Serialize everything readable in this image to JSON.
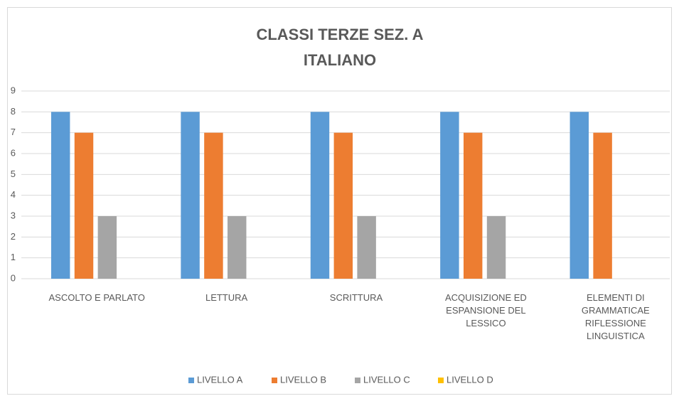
{
  "chart_data": {
    "type": "bar",
    "title": [
      "CLASSI TERZE SEZ. A",
      "ITALIANO"
    ],
    "categories": [
      "ASCOLTO E PARLATO",
      "LETTURA",
      "SCRITTURA",
      "ACQUISIZIONE ED ESPANSIONE DEL LESSICO",
      "ELEMENTI DI GRAMMATICAE RIFLESSIONE LINGUISTICA"
    ],
    "series": [
      {
        "name": "LIVELLO A",
        "color": "#5b9bd5",
        "values": [
          8,
          8,
          8,
          8,
          8
        ]
      },
      {
        "name": "LIVELLO B",
        "color": "#ed7d31",
        "values": [
          7,
          7,
          7,
          7,
          7
        ]
      },
      {
        "name": "LIVELLO C",
        "color": "#a5a5a5",
        "values": [
          3,
          3,
          3,
          3,
          0
        ]
      },
      {
        "name": "LIVELLO D",
        "color": "#ffc000",
        "values": [
          0,
          0,
          0,
          0,
          0
        ]
      }
    ],
    "ylim": [
      0,
      9
    ],
    "yticks": [
      0,
      1,
      2,
      3,
      4,
      5,
      6,
      7,
      8,
      9
    ],
    "grid": true,
    "legend": "bottom"
  }
}
